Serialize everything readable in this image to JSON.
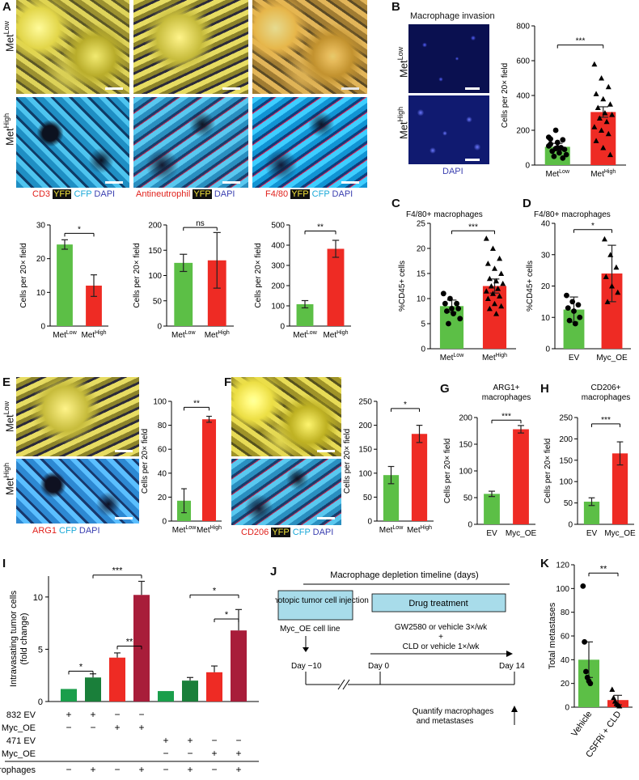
{
  "panels": {
    "A": "A",
    "B": "B",
    "C": "C",
    "D": "D",
    "E": "E",
    "F": "F",
    "G": "G",
    "H": "H",
    "I": "I",
    "J": "J",
    "K": "K"
  },
  "rowlabels": {
    "met": "Met",
    "low": "Low",
    "high": "High"
  },
  "colors": {
    "green": "#5cbf46",
    "red": "#ee2b24",
    "darkgreen": "#1a7f3a",
    "darkred": "#a81d3a",
    "yfp_bg": "#111111",
    "yfp_fg": "#f3e33a",
    "timeline_box": "#a8dcea"
  },
  "captions": {
    "A1": {
      "stain": "CD3",
      "yfp": "YFP",
      "cfp": "CFP",
      "dapi": "DAPI"
    },
    "A2": {
      "stain": "Antineutrophil",
      "yfp": "YFP",
      "dapi": "DAPI"
    },
    "A3": {
      "stain": "F4/80",
      "yfp": "YFP",
      "cfp": "CFP",
      "dapi": "DAPI"
    },
    "B": {
      "title": "Macrophage invasion",
      "dapi": "DAPI"
    },
    "E": {
      "stain": "ARG1",
      "cfp": "CFP",
      "dapi": "DAPI"
    },
    "F": {
      "stain": "CD206",
      "yfp": "YFP",
      "cfp": "CFP",
      "dapi": "DAPI"
    }
  },
  "chart_data": [
    {
      "id": "A-CD3",
      "type": "bar",
      "categories": [
        "MetLow",
        "MetHigh"
      ],
      "values": [
        24.2,
        12
      ],
      "errors": [
        1.4,
        3.2
      ],
      "ylabel": "Cells per 20× field",
      "ylim": [
        0,
        30
      ],
      "yticks": [
        0,
        10,
        20,
        30
      ],
      "sig": "*"
    },
    {
      "id": "A-neutrophil",
      "type": "bar",
      "categories": [
        "MetLow",
        "MetHigh"
      ],
      "values": [
        125,
        130
      ],
      "errors": [
        17,
        55
      ],
      "ylabel": "Cells per 20× field",
      "ylim": [
        0,
        200
      ],
      "yticks": [
        0,
        50,
        100,
        150,
        200
      ],
      "sig": "ns"
    },
    {
      "id": "A-F480",
      "type": "bar",
      "categories": [
        "MetLow",
        "MetHigh"
      ],
      "values": [
        108,
        382
      ],
      "errors": [
        18,
        42
      ],
      "ylabel": "Cells per 20× field",
      "ylim": [
        0,
        500
      ],
      "yticks": [
        0,
        100,
        200,
        300,
        400,
        500
      ],
      "sig": "**"
    },
    {
      "id": "B",
      "type": "bar",
      "categories": [
        "MetLow",
        "MetHigh"
      ],
      "values": [
        105,
        305
      ],
      "errors": [
        20,
        30
      ],
      "ylabel": "Cells per 20× field",
      "ylim": [
        0,
        800
      ],
      "yticks": [
        0,
        200,
        400,
        600,
        800
      ],
      "sig": "***",
      "points": [
        [
          160,
          200,
          145,
          120,
          100,
          90,
          80,
          70,
          60,
          50,
          100,
          110,
          95,
          40,
          150,
          130
        ],
        [
          580,
          500,
          450,
          410,
          380,
          350,
          330,
          300,
          290,
          270,
          250,
          220,
          200,
          180,
          140,
          100,
          60
        ]
      ]
    },
    {
      "id": "C",
      "type": "bar",
      "title": "F4/80+ macrophages",
      "categories": [
        "MetLow",
        "MetHigh"
      ],
      "values": [
        8.5,
        12.5
      ],
      "errors": [
        1.2,
        1.4
      ],
      "ylabel": "%CD45+ cells",
      "ylim": [
        0,
        25
      ],
      "yticks": [
        0,
        5,
        10,
        15,
        20,
        25
      ],
      "sig": "***",
      "points": [
        [
          11,
          10,
          9,
          9,
          8,
          8,
          7.5,
          7,
          6,
          5
        ],
        [
          22,
          20,
          18,
          17,
          16,
          15,
          14,
          13.5,
          13,
          12.5,
          12,
          11.5,
          11,
          10.5,
          10,
          9,
          8.5,
          8,
          7
        ]
      ]
    },
    {
      "id": "D",
      "type": "bar",
      "title": "F4/80+ macrophages",
      "categories": [
        "EV",
        "Myc_OE"
      ],
      "values": [
        12.5,
        24
      ],
      "errors": [
        4,
        9
      ],
      "ylabel": "%CD45+ cells",
      "ylim": [
        0,
        40
      ],
      "yticks": [
        0,
        10,
        20,
        30,
        40
      ],
      "sig": "*",
      "points": [
        [
          17,
          15,
          14,
          13,
          12,
          10,
          9,
          8
        ],
        [
          35,
          30,
          26,
          23,
          20,
          18,
          15
        ]
      ]
    },
    {
      "id": "E",
      "type": "bar",
      "categories": [
        "MetLow",
        "MetHigh"
      ],
      "values": [
        17,
        85
      ],
      "errors": [
        10,
        2.5
      ],
      "ylabel": "Cells per 20× field",
      "ylim": [
        0,
        100
      ],
      "yticks": [
        0,
        20,
        40,
        60,
        80,
        100
      ],
      "sig": "**"
    },
    {
      "id": "F",
      "type": "bar",
      "categories": [
        "MetLow",
        "MetHigh"
      ],
      "values": [
        96,
        182
      ],
      "errors": [
        18,
        18
      ],
      "ylabel": "Cells per 20× field",
      "ylim": [
        0,
        250
      ],
      "yticks": [
        0,
        50,
        100,
        150,
        200,
        250
      ],
      "sig": "*"
    },
    {
      "id": "G",
      "type": "bar",
      "title": "ARG1+ macrophages",
      "categories": [
        "EV",
        "Myc_OE"
      ],
      "values": [
        57,
        178
      ],
      "errors": [
        5,
        7
      ],
      "ylabel": "Cells per 20× field",
      "ylim": [
        0,
        200
      ],
      "yticks": [
        0,
        50,
        100,
        150,
        200
      ],
      "sig": "***"
    },
    {
      "id": "H",
      "type": "bar",
      "title": "CD206+ macrophages",
      "categories": [
        "EV",
        "Myc_OE"
      ],
      "values": [
        53,
        166
      ],
      "errors": [
        9,
        27
      ],
      "ylabel": "Cells per 20× field",
      "ylim": [
        0,
        250
      ],
      "yticks": [
        0,
        50,
        100,
        150,
        200,
        250
      ],
      "sig": "***"
    },
    {
      "id": "I",
      "type": "bar",
      "ylabel": "Intravasating tumor cells (fold change)",
      "ylim": [
        0,
        12
      ],
      "yticks": [
        0,
        5,
        10
      ],
      "values": [
        1.2,
        2.3,
        4.2,
        10.2,
        1.0,
        2.0,
        2.8,
        6.8
      ],
      "errors": [
        0,
        0.35,
        0.45,
        1.3,
        0,
        0.3,
        0.6,
        2.0
      ],
      "colors": [
        "#1a9e4b",
        "#1a7f3a",
        "#ee2b24",
        "#a81d3a",
        "#1a9e4b",
        "#1a7f3a",
        "#ee2b24",
        "#a81d3a"
      ],
      "rows": [
        {
          "label": "832 EV",
          "cells": [
            "+",
            "+",
            "−",
            "−",
            "",
            "",
            "",
            ""
          ]
        },
        {
          "label": "832 Myc_OE",
          "cells": [
            "−",
            "−",
            "+",
            "+",
            "",
            "",
            "",
            ""
          ]
        },
        {
          "label": "471 EV",
          "cells": [
            "",
            "",
            "",
            "",
            "+",
            "+",
            "−",
            "−"
          ]
        },
        {
          "label": "471 Myc_OE",
          "cells": [
            "",
            "",
            "",
            "",
            "−",
            "−",
            "+",
            "+"
          ]
        },
        {
          "label": "Macrophages",
          "cells": [
            "−",
            "+",
            "−",
            "+",
            "−",
            "+",
            "−",
            "+"
          ]
        }
      ],
      "sigs": [
        {
          "a": 0,
          "b": 1,
          "t": "*"
        },
        {
          "a": 2,
          "b": 3,
          "t": "**"
        },
        {
          "a": 1,
          "b": 3,
          "t": "***"
        },
        {
          "a": 6,
          "b": 7,
          "t": "*"
        },
        {
          "a": 5,
          "b": 7,
          "t": "*"
        }
      ]
    },
    {
      "id": "K",
      "type": "bar",
      "categories": [
        "Vehicle",
        "CSFRi + CLD"
      ],
      "values": [
        40,
        6
      ],
      "errors": [
        15,
        4
      ],
      "ylabel": "Total metastases",
      "ylim": [
        0,
        120
      ],
      "yticks": [
        0,
        20,
        40,
        60,
        80,
        100,
        120
      ],
      "sig": "**",
      "points": [
        [
          102,
          55,
          30,
          25,
          22,
          20
        ],
        [
          15,
          8,
          5,
          3,
          2,
          1
        ]
      ]
    }
  ],
  "J": {
    "title": "Macrophage depletion timeline (days)",
    "box1": "Orthotopic tumor cell injection",
    "box2": "Drug treatment",
    "line1": "Myc_OE cell line",
    "line2": "GW2580 or vehicle 3×/wk",
    "plus": "+",
    "line3": "CLD or vehicle 1×/wk",
    "day_m10": "Day −10",
    "day0": "Day 0",
    "day14": "Day 14",
    "quantify": "Quantify macrophages and metastases"
  }
}
